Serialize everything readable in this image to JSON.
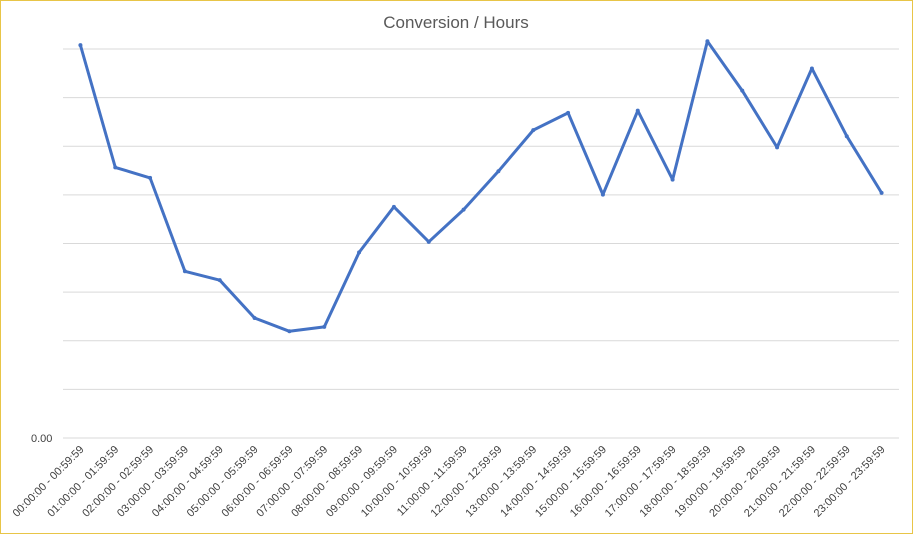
{
  "chart_data": {
    "type": "line",
    "title": "Conversion / Hours",
    "xlabel": "",
    "ylabel": "",
    "y_tick_labels": [
      "0.00"
    ],
    "ylim": [
      0,
      7
    ],
    "grid": true,
    "legend": "none",
    "colors": {
      "series": "#4472c4",
      "grid": "#d9d9d9",
      "frame": "#e8c547",
      "text": "#595959"
    },
    "categories": [
      "00:00:00 - 00:59:59",
      "01:00:00 - 01:59:59",
      "02:00:00 - 02:59:59",
      "03:00:00 - 03:59:59",
      "04:00:00 - 04:59:59",
      "05:00:00 - 05:59:59",
      "06:00:00 - 06:59:59",
      "07:00:00 - 07:59:59",
      "08:00:00 - 08:59:59",
      "09:00:00 - 09:59:59",
      "10:00:00 - 10:59:59",
      "11:00:00 - 11:59:59",
      "12:00:00 - 12:59:59",
      "13:00:00 - 13:59:59",
      "14:00:00 - 14:59:59",
      "15:00:00 - 15:59:59",
      "16:00:00 - 16:59:59",
      "17:00:00 - 17:59:59",
      "18:00:00 - 18:59:59",
      "19:00:00 - 19:59:59",
      "20:00:00 - 20:59:59",
      "21:00:00 - 21:59:59",
      "22:00:00 - 22:59:59",
      "23:00:00 - 23:59:59"
    ],
    "series": [
      {
        "values": [
          7.07,
          4.87,
          4.68,
          3.0,
          2.84,
          2.16,
          1.92,
          2.0,
          3.34,
          4.16,
          3.53,
          4.11,
          4.8,
          5.54,
          5.85,
          4.38,
          5.89,
          4.65,
          7.14,
          6.25,
          5.23,
          6.65,
          5.43,
          4.41
        ]
      }
    ]
  }
}
